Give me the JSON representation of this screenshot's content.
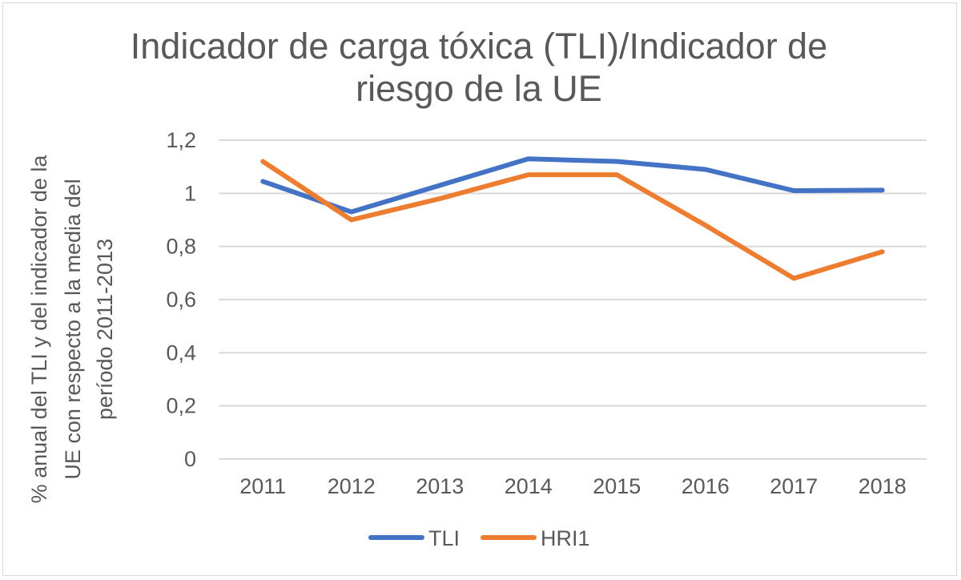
{
  "chart_data": {
    "type": "line",
    "title_lines": [
      "Indicador de carga tóxica (TLI)/Indicador de",
      "riesgo de la UE"
    ],
    "ylabel_lines": [
      "% anual del TLI y del indicador de la",
      "UE con respecto a la media del",
      "período 2011-2013"
    ],
    "xlabel": "",
    "categories": [
      "2011",
      "2012",
      "2013",
      "2014",
      "2015",
      "2016",
      "2017",
      "2018"
    ],
    "ylim": [
      0,
      1.2
    ],
    "yticks": [
      0,
      0.2,
      0.4,
      0.6,
      0.8,
      1,
      1.2
    ],
    "ytick_labels": [
      "0",
      "0,2",
      "0,4",
      "0,6",
      "0,8",
      "1",
      "1,2"
    ],
    "grid": true,
    "legend_position": "bottom",
    "series": [
      {
        "name": "TLI",
        "color": "#4472C4",
        "values": [
          1.045,
          0.93,
          1.03,
          1.13,
          1.12,
          1.09,
          1.01,
          1.012
        ]
      },
      {
        "name": "HRI1",
        "color": "#ED7D31",
        "values": [
          1.12,
          0.9,
          0.98,
          1.07,
          1.07,
          0.88,
          0.68,
          0.78
        ]
      }
    ]
  }
}
